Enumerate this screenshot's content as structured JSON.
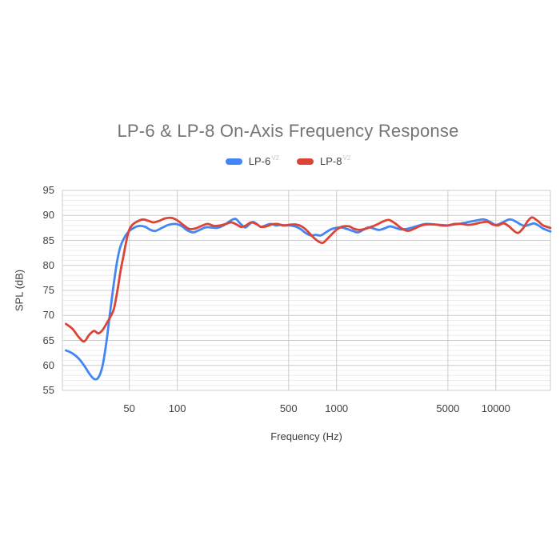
{
  "page": {
    "background": "#ffffff"
  },
  "chart_data": {
    "type": "line",
    "title": "LP-6 & LP-8 On-Axis Frequency Response",
    "xlabel": "Frequency (Hz)",
    "ylabel": "SPL (dB)",
    "x_scale": "log",
    "x_domain": [
      19,
      22000
    ],
    "x_ticks": [
      50,
      100,
      500,
      1000,
      5000,
      10000
    ],
    "y_domain": [
      55,
      95
    ],
    "y_ticks": [
      95,
      90,
      85,
      80,
      75,
      70,
      65,
      60,
      55
    ],
    "y_minor_step": 1,
    "grid": true,
    "legend_position": "top",
    "series": [
      {
        "name": "LP-6",
        "sup": "V2",
        "color": "#4285f4",
        "points": [
          [
            20,
            63.0
          ],
          [
            22,
            62.4
          ],
          [
            24,
            61.4
          ],
          [
            26,
            60.0
          ],
          [
            28,
            58.4
          ],
          [
            30,
            57.3
          ],
          [
            32,
            57.6
          ],
          [
            34,
            60.0
          ],
          [
            36,
            65.0
          ],
          [
            38,
            71.0
          ],
          [
            40,
            76.5
          ],
          [
            42,
            81.0
          ],
          [
            44,
            83.8
          ],
          [
            47,
            85.8
          ],
          [
            50,
            86.9
          ],
          [
            54,
            87.6
          ],
          [
            58,
            87.9
          ],
          [
            63,
            87.7
          ],
          [
            68,
            87.1
          ],
          [
            73,
            86.9
          ],
          [
            80,
            87.5
          ],
          [
            88,
            88.1
          ],
          [
            97,
            88.3
          ],
          [
            106,
            87.9
          ],
          [
            116,
            87.0
          ],
          [
            126,
            86.6
          ],
          [
            138,
            87.1
          ],
          [
            150,
            87.6
          ],
          [
            163,
            87.6
          ],
          [
            178,
            87.5
          ],
          [
            195,
            88.0
          ],
          [
            215,
            88.9
          ],
          [
            232,
            89.3
          ],
          [
            250,
            88.3
          ],
          [
            266,
            87.6
          ],
          [
            283,
            88.2
          ],
          [
            298,
            88.7
          ],
          [
            315,
            88.3
          ],
          [
            335,
            87.7
          ],
          [
            358,
            88.0
          ],
          [
            385,
            88.3
          ],
          [
            415,
            88.0
          ],
          [
            445,
            88.1
          ],
          [
            478,
            88.0
          ],
          [
            512,
            88.0
          ],
          [
            550,
            87.8
          ],
          [
            592,
            87.3
          ],
          [
            638,
            86.5
          ],
          [
            688,
            86.0
          ],
          [
            740,
            86.1
          ],
          [
            795,
            86.0
          ],
          [
            855,
            86.6
          ],
          [
            920,
            87.2
          ],
          [
            990,
            87.5
          ],
          [
            1070,
            87.6
          ],
          [
            1160,
            87.3
          ],
          [
            1260,
            86.9
          ],
          [
            1360,
            86.6
          ],
          [
            1470,
            87.1
          ],
          [
            1580,
            87.6
          ],
          [
            1700,
            87.4
          ],
          [
            1840,
            87.1
          ],
          [
            2000,
            87.4
          ],
          [
            2170,
            87.8
          ],
          [
            2350,
            87.5
          ],
          [
            2550,
            87.2
          ],
          [
            2760,
            87.3
          ],
          [
            3000,
            87.6
          ],
          [
            3300,
            88.0
          ],
          [
            3650,
            88.3
          ],
          [
            4050,
            88.2
          ],
          [
            4500,
            88.1
          ],
          [
            5000,
            88.0
          ],
          [
            5520,
            88.2
          ],
          [
            6100,
            88.4
          ],
          [
            6800,
            88.7
          ],
          [
            7600,
            89.0
          ],
          [
            8400,
            89.2
          ],
          [
            9200,
            88.7
          ],
          [
            10000,
            88.1
          ],
          [
            11000,
            88.6
          ],
          [
            12200,
            89.2
          ],
          [
            13300,
            88.8
          ],
          [
            14300,
            88.2
          ],
          [
            15300,
            87.9
          ],
          [
            16400,
            88.2
          ],
          [
            17400,
            88.4
          ],
          [
            18500,
            88.0
          ],
          [
            19700,
            87.4
          ],
          [
            22000,
            86.8
          ]
        ]
      },
      {
        "name": "LP-8",
        "sup": "V2",
        "color": "#db4437",
        "points": [
          [
            20,
            68.3
          ],
          [
            22,
            67.3
          ],
          [
            24,
            65.7
          ],
          [
            26,
            64.8
          ],
          [
            28,
            66.1
          ],
          [
            30,
            66.9
          ],
          [
            32,
            66.4
          ],
          [
            34,
            67.1
          ],
          [
            36,
            68.4
          ],
          [
            38,
            69.7
          ],
          [
            40,
            71.3
          ],
          [
            42,
            74.8
          ],
          [
            44,
            78.8
          ],
          [
            46,
            82.0
          ],
          [
            48,
            85.0
          ],
          [
            50,
            87.2
          ],
          [
            53,
            88.3
          ],
          [
            57,
            88.9
          ],
          [
            61,
            89.2
          ],
          [
            66,
            88.9
          ],
          [
            71,
            88.6
          ],
          [
            77,
            88.9
          ],
          [
            84,
            89.4
          ],
          [
            92,
            89.5
          ],
          [
            100,
            89.0
          ],
          [
            109,
            88.1
          ],
          [
            119,
            87.3
          ],
          [
            130,
            87.4
          ],
          [
            142,
            87.9
          ],
          [
            155,
            88.3
          ],
          [
            170,
            87.9
          ],
          [
            186,
            88.0
          ],
          [
            202,
            88.3
          ],
          [
            218,
            88.6
          ],
          [
            235,
            88.2
          ],
          [
            252,
            87.7
          ],
          [
            270,
            88.0
          ],
          [
            290,
            88.6
          ],
          [
            312,
            88.3
          ],
          [
            336,
            87.7
          ],
          [
            362,
            87.8
          ],
          [
            392,
            88.2
          ],
          [
            425,
            88.3
          ],
          [
            460,
            88.0
          ],
          [
            500,
            88.1
          ],
          [
            545,
            88.2
          ],
          [
            595,
            87.9
          ],
          [
            650,
            87.0
          ],
          [
            710,
            85.7
          ],
          [
            770,
            84.8
          ],
          [
            820,
            84.5
          ],
          [
            880,
            85.4
          ],
          [
            945,
            86.4
          ],
          [
            1015,
            87.3
          ],
          [
            1100,
            87.8
          ],
          [
            1200,
            87.8
          ],
          [
            1290,
            87.3
          ],
          [
            1390,
            87.1
          ],
          [
            1510,
            87.3
          ],
          [
            1650,
            87.7
          ],
          [
            1800,
            88.2
          ],
          [
            1960,
            88.8
          ],
          [
            2130,
            89.1
          ],
          [
            2330,
            88.4
          ],
          [
            2560,
            87.4
          ],
          [
            2800,
            86.9
          ],
          [
            3050,
            87.3
          ],
          [
            3350,
            87.9
          ],
          [
            3700,
            88.2
          ],
          [
            4100,
            88.2
          ],
          [
            4550,
            88.0
          ],
          [
            5000,
            88.0
          ],
          [
            5520,
            88.3
          ],
          [
            6100,
            88.3
          ],
          [
            6700,
            88.1
          ],
          [
            7400,
            88.3
          ],
          [
            8100,
            88.6
          ],
          [
            8900,
            88.7
          ],
          [
            9500,
            88.2
          ],
          [
            10300,
            88.0
          ],
          [
            11200,
            88.4
          ],
          [
            12100,
            87.8
          ],
          [
            13000,
            86.9
          ],
          [
            13800,
            86.5
          ],
          [
            14800,
            87.4
          ],
          [
            15800,
            88.8
          ],
          [
            16800,
            89.6
          ],
          [
            17800,
            89.2
          ],
          [
            18800,
            88.6
          ],
          [
            19800,
            88.0
          ],
          [
            22000,
            87.5
          ]
        ]
      }
    ]
  }
}
